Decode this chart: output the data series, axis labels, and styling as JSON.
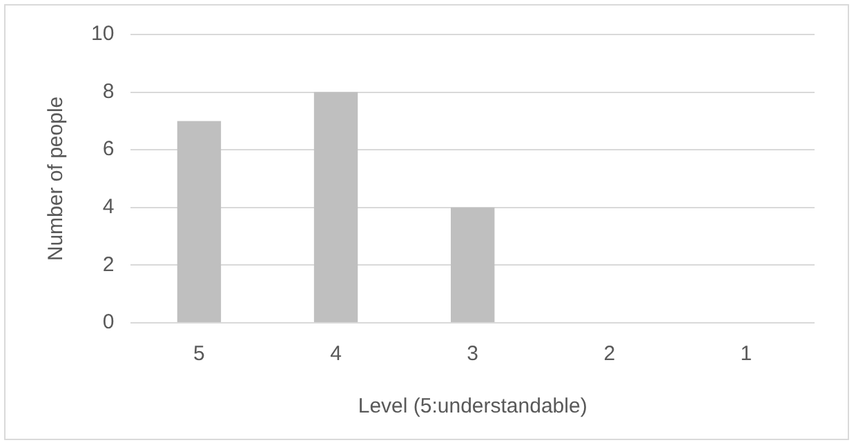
{
  "chart_data": {
    "type": "bar",
    "xlabel": "Level (5:understandable)",
    "ylabel": "Number of people",
    "categories": [
      "5",
      "4",
      "3",
      "2",
      "1"
    ],
    "values": [
      7,
      8,
      4,
      0,
      0
    ],
    "color": "#bfbfbf",
    "ylim": [
      0,
      10
    ],
    "yticks": [
      0,
      2,
      4,
      6,
      8,
      10
    ],
    "grid": "y",
    "legend": false
  }
}
